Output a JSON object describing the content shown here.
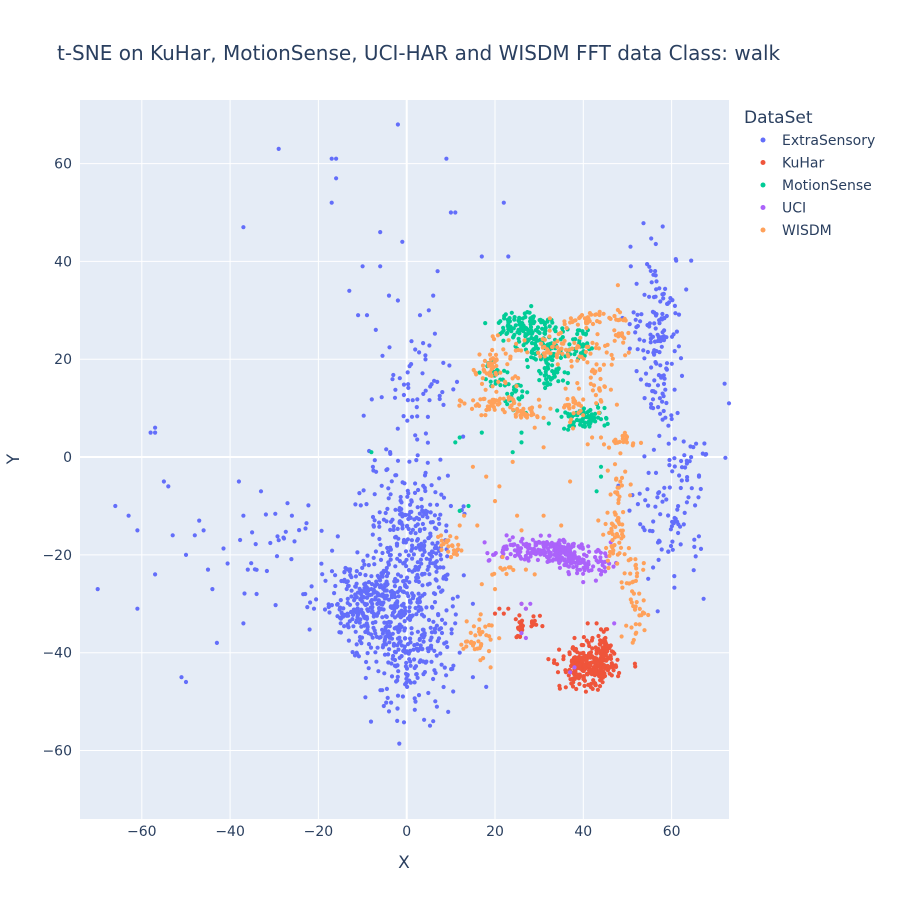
{
  "chart_data": {
    "type": "scatter",
    "title": "t-SNE on KuHar, MotionSense, UCI-HAR and WISDM   FFT data   Class: walk",
    "xlabel": "X",
    "ylabel": "Y",
    "xlim": [
      -74,
      73
    ],
    "ylim": [
      -74,
      73
    ],
    "x_ticks": [
      -60,
      -40,
      -20,
      0,
      20,
      40,
      60
    ],
    "y_ticks": [
      -60,
      -40,
      -20,
      0,
      20,
      40,
      60
    ],
    "x_tick_labels": [
      "−60",
      "−40",
      "−20",
      "0",
      "20",
      "40",
      "60"
    ],
    "y_tick_labels": [
      "−60",
      "−40",
      "−20",
      "0",
      "20",
      "40",
      "60"
    ],
    "grid": true,
    "legend": {
      "title": "DataSet",
      "position": "right"
    },
    "series": [
      {
        "name": "ExtraSensory",
        "color": "#636efa",
        "clusters": [
          {
            "cx": -3,
            "cy": -30,
            "sx": 6,
            "sy": 5,
            "n": 320
          },
          {
            "cx": -12,
            "cy": -30,
            "sx": 4,
            "sy": 4,
            "n": 120
          },
          {
            "cx": 0,
            "cy": -12,
            "sx": 5,
            "sy": 6,
            "n": 170
          },
          {
            "cx": 0,
            "cy": -42,
            "sx": 5,
            "sy": 5,
            "n": 170
          },
          {
            "cx": 5,
            "cy": -20,
            "sx": 3,
            "sy": 3,
            "n": 60
          },
          {
            "cx": 3,
            "cy": 15,
            "sx": 5,
            "sy": 6,
            "n": 55
          },
          {
            "cx": 57,
            "cy": 28,
            "sx": 3,
            "sy": 7,
            "n": 120
          },
          {
            "cx": 57,
            "cy": 12,
            "sx": 2,
            "sy": 3,
            "n": 30
          },
          {
            "cx": 60,
            "cy": -12,
            "sx": 4,
            "sy": 7,
            "n": 85
          },
          {
            "cx": 64,
            "cy": 0,
            "sx": 3,
            "sy": 2,
            "n": 20
          },
          {
            "cx": -30,
            "cy": -18,
            "sx": 7,
            "sy": 5,
            "n": 30
          }
        ],
        "points": [
          [
            -2,
            68
          ],
          [
            -29,
            63
          ],
          [
            -17,
            61
          ],
          [
            -16,
            61
          ],
          [
            9,
            61
          ],
          [
            -16,
            57
          ],
          [
            -37,
            47
          ],
          [
            -17,
            52
          ],
          [
            -6,
            46
          ],
          [
            10,
            50
          ],
          [
            11,
            50
          ],
          [
            22,
            52
          ],
          [
            17,
            41
          ],
          [
            23,
            41
          ],
          [
            -1,
            44
          ],
          [
            -10,
            39
          ],
          [
            -6,
            39
          ],
          [
            7,
            38
          ],
          [
            -13,
            34
          ],
          [
            -4,
            33
          ],
          [
            -2,
            32
          ],
          [
            6,
            33
          ],
          [
            -11,
            29
          ],
          [
            -9,
            29
          ],
          [
            -7,
            26
          ],
          [
            3,
            29
          ],
          [
            5,
            30
          ],
          [
            72,
            15
          ],
          [
            73,
            11
          ],
          [
            -58,
            5
          ],
          [
            -57,
            6
          ],
          [
            -57,
            5
          ],
          [
            -66,
            -10
          ],
          [
            -63,
            -12
          ],
          [
            -61,
            -15
          ],
          [
            -55,
            -5
          ],
          [
            -54,
            -6
          ],
          [
            -50,
            -20
          ],
          [
            -47,
            -13
          ],
          [
            -46,
            -15
          ],
          [
            -48,
            -16
          ],
          [
            -45,
            -23
          ],
          [
            -44,
            -27
          ],
          [
            -43,
            -38
          ],
          [
            -38,
            -5
          ],
          [
            -37,
            -12
          ],
          [
            -36,
            -23
          ],
          [
            -37,
            -34
          ],
          [
            -61,
            -31
          ],
          [
            -57,
            -24
          ],
          [
            -51,
            -45
          ],
          [
            -50,
            -46
          ],
          [
            -70,
            -27
          ],
          [
            -53,
            -16
          ],
          [
            -33,
            -7
          ],
          [
            -34,
            -28
          ],
          [
            -29,
            -17
          ],
          [
            -26,
            -12
          ],
          [
            -23,
            -28
          ],
          [
            -21,
            -31
          ],
          [
            15,
            -30
          ],
          [
            12,
            -40
          ],
          [
            15,
            -45
          ],
          [
            18,
            -47
          ],
          [
            10,
            -10
          ],
          [
            9,
            -14
          ],
          [
            -4,
            -52
          ],
          [
            2,
            -50
          ],
          [
            6,
            -54
          ]
        ]
      },
      {
        "name": "KuHar",
        "color": "#ef553b",
        "clusters": [
          {
            "cx": 41,
            "cy": -43,
            "sx": 3,
            "sy": 2.2,
            "n": 260
          },
          {
            "cx": 45,
            "cy": -40,
            "sx": 1.3,
            "sy": 2,
            "n": 50
          },
          {
            "cx": 26,
            "cy": -35,
            "sx": 1,
            "sy": 1.2,
            "n": 18
          },
          {
            "cx": 29,
            "cy": -34,
            "sx": 0.8,
            "sy": 1,
            "n": 10
          }
        ],
        "points": [
          [
            21,
            -31
          ],
          [
            22,
            -32
          ],
          [
            23,
            -31
          ],
          [
            20,
            -32
          ],
          [
            41,
            -34
          ],
          [
            43,
            -34
          ],
          [
            38,
            -37
          ],
          [
            45,
            -37
          ],
          [
            27,
            -31
          ],
          [
            26,
            -30
          ]
        ]
      },
      {
        "name": "MotionSense",
        "color": "#00cc96",
        "clusters": [
          {
            "cx": 27,
            "cy": 27,
            "sx": 3,
            "sy": 1.5,
            "n": 110
          },
          {
            "cx": 31,
            "cy": 22,
            "sx": 3,
            "sy": 1.5,
            "n": 80
          },
          {
            "cx": 39,
            "cy": 23,
            "sx": 2,
            "sy": 2,
            "n": 35
          },
          {
            "cx": 33,
            "cy": 17,
            "sx": 2,
            "sy": 1.2,
            "n": 35
          },
          {
            "cx": 40,
            "cy": 8,
            "sx": 2.5,
            "sy": 1.2,
            "n": 70
          },
          {
            "cx": 24,
            "cy": 13,
            "sx": 2,
            "sy": 1.2,
            "n": 25
          },
          {
            "cx": 20,
            "cy": 17,
            "sx": 1.5,
            "sy": 1.5,
            "n": 20
          }
        ],
        "points": [
          [
            -8,
            1
          ],
          [
            12,
            4
          ],
          [
            11,
            3
          ],
          [
            17,
            5
          ],
          [
            26,
            5
          ],
          [
            26,
            3
          ],
          [
            44,
            -2
          ],
          [
            44,
            -4
          ],
          [
            43,
            -7
          ],
          [
            12,
            -11
          ],
          [
            14,
            -10
          ],
          [
            24,
            1
          ],
          [
            27,
            9
          ],
          [
            37,
            21
          ]
        ]
      },
      {
        "name": "UCI",
        "color": "#ab63fa",
        "clusters": [
          {
            "cx": 33,
            "cy": -19,
            "sx": 4,
            "sy": 1.3,
            "n": 170
          },
          {
            "cx": 41,
            "cy": -22,
            "sx": 3,
            "sy": 1.3,
            "n": 70
          },
          {
            "cx": 25,
            "cy": -19,
            "sx": 1.5,
            "sy": 1,
            "n": 30
          },
          {
            "cx": 20,
            "cy": -20,
            "sx": 1,
            "sy": 0.8,
            "n": 10
          }
        ],
        "points": [
          [
            26,
            -30
          ],
          [
            27,
            -31
          ],
          [
            28,
            -30
          ],
          [
            26,
            -36
          ],
          [
            27,
            -37
          ],
          [
            38,
            -43
          ],
          [
            37,
            -44
          ],
          [
            47,
            -34
          ],
          [
            44,
            -24
          ]
        ]
      },
      {
        "name": "WISDM",
        "color": "#ffa15a",
        "clusters": [
          {
            "cx": 20,
            "cy": 19,
            "sx": 2.5,
            "sy": 2.5,
            "n": 60
          },
          {
            "cx": 19,
            "cy": 11,
            "sx": 3,
            "sy": 1,
            "n": 45
          },
          {
            "cx": 27,
            "cy": 9,
            "sx": 2,
            "sy": 1,
            "n": 30
          },
          {
            "cx": 34,
            "cy": 22,
            "sx": 4,
            "sy": 1.5,
            "n": 55
          },
          {
            "cx": 40,
            "cy": 28,
            "sx": 2.5,
            "sy": 1,
            "n": 35
          },
          {
            "cx": 44,
            "cy": 18,
            "sx": 2,
            "sy": 4,
            "n": 40
          },
          {
            "cx": 48,
            "cy": 27,
            "sx": 1,
            "sy": 2.5,
            "n": 25
          },
          {
            "cx": 38,
            "cy": 10,
            "sx": 2,
            "sy": 1.5,
            "n": 25
          },
          {
            "cx": 48,
            "cy": 3,
            "sx": 2.5,
            "sy": 1,
            "n": 20
          },
          {
            "cx": 48,
            "cy": -7,
            "sx": 1,
            "sy": 4,
            "n": 30
          },
          {
            "cx": 47,
            "cy": -17,
            "sx": 1.5,
            "sy": 3,
            "n": 40
          },
          {
            "cx": 51,
            "cy": -26,
            "sx": 2,
            "sy": 3,
            "n": 25
          },
          {
            "cx": 52,
            "cy": -31,
            "sx": 1.5,
            "sy": 1,
            "n": 10
          },
          {
            "cx": 51,
            "cy": -36,
            "sx": 1.5,
            "sy": 1,
            "n": 10
          },
          {
            "cx": 10,
            "cy": -18,
            "sx": 1.2,
            "sy": 1.5,
            "n": 25
          },
          {
            "cx": 16,
            "cy": -37,
            "sx": 2,
            "sy": 2,
            "n": 35
          },
          {
            "cx": 22,
            "cy": -23,
            "sx": 1.2,
            "sy": 1,
            "n": 10
          }
        ],
        "points": [
          [
            15,
            -2
          ],
          [
            18,
            -4
          ],
          [
            21,
            -6
          ],
          [
            20,
            -9
          ],
          [
            25,
            -12
          ],
          [
            26,
            -15
          ],
          [
            31,
            -12
          ],
          [
            35,
            -14
          ],
          [
            37,
            -5
          ],
          [
            31,
            2
          ],
          [
            24,
            -1
          ],
          [
            27,
            -23
          ],
          [
            29,
            -24
          ],
          [
            20,
            -27
          ],
          [
            17,
            -26
          ],
          [
            19,
            -43
          ],
          [
            13,
            -12
          ],
          [
            12,
            -14
          ],
          [
            16,
            -14
          ],
          [
            29,
            6
          ],
          [
            31,
            8
          ],
          [
            36,
            14
          ],
          [
            39,
            14
          ],
          [
            42,
            4
          ],
          [
            44,
            4
          ]
        ]
      }
    ]
  }
}
